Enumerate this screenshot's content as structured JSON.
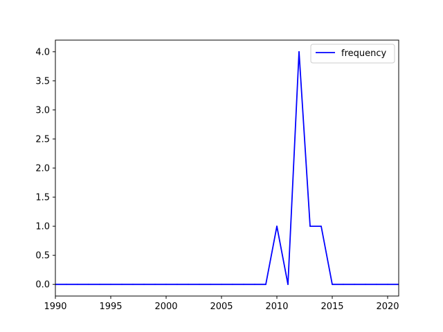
{
  "chart_data": {
    "type": "line",
    "title": "",
    "xlabel": "",
    "ylabel": "",
    "xlim": [
      1990,
      2021
    ],
    "ylim": [
      -0.2,
      4.2
    ],
    "x_ticks": [
      1990,
      1995,
      2000,
      2005,
      2010,
      2015,
      2020
    ],
    "x_tick_labels": [
      "1990",
      "1995",
      "2000",
      "2005",
      "2010",
      "2015",
      "2020"
    ],
    "y_ticks": [
      0.0,
      0.5,
      1.0,
      1.5,
      2.0,
      2.5,
      3.0,
      3.5,
      4.0
    ],
    "y_tick_labels": [
      "0.0",
      "0.5",
      "1.0",
      "1.5",
      "2.0",
      "2.5",
      "3.0",
      "3.5",
      "4.0"
    ],
    "grid": false,
    "legend_position": "top-right",
    "series": [
      {
        "name": "frequency",
        "color": "#0000ff",
        "x": [
          1990,
          1991,
          1992,
          1993,
          1994,
          1995,
          1996,
          1997,
          1998,
          1999,
          2000,
          2001,
          2002,
          2003,
          2004,
          2005,
          2006,
          2007,
          2008,
          2009,
          2010,
          2011,
          2012,
          2013,
          2014,
          2015,
          2016,
          2017,
          2018,
          2019,
          2020,
          2021
        ],
        "y": [
          0,
          0,
          0,
          0,
          0,
          0,
          0,
          0,
          0,
          0,
          0,
          0,
          0,
          0,
          0,
          0,
          0,
          0,
          0,
          0,
          1,
          0,
          4,
          1,
          1,
          0,
          0,
          0,
          0,
          0,
          0,
          0
        ]
      }
    ]
  }
}
